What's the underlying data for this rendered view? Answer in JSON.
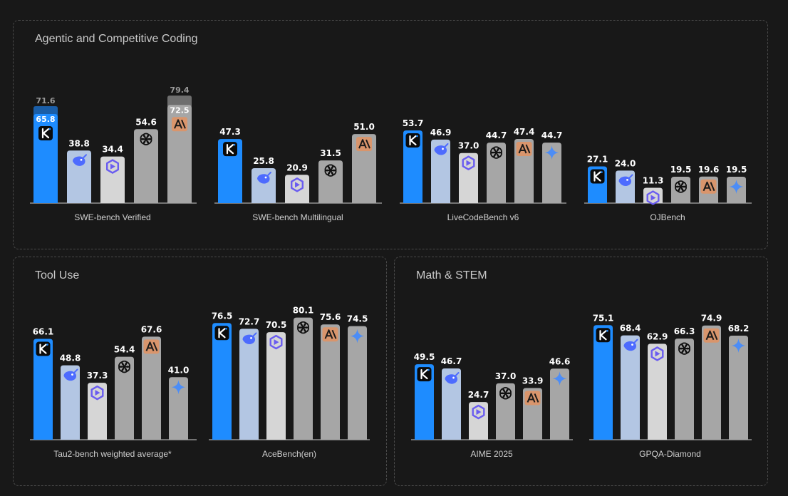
{
  "colors": {
    "kimi": "#1e8cff",
    "deepseek": "#b3c6e3",
    "qwen": "#d6d6d6",
    "openai": "#a6a6a6",
    "anthropic": "#a6a6a6",
    "gemini": "#a6a6a6",
    "axis": "#d0d0d0",
    "anthropic_icon_bg": "#d9956c",
    "kimi_extra": "#1a5ea8",
    "anthropic_extra": "#6e6e6e"
  },
  "panels": [
    {
      "id": "coding",
      "title": "Agentic and Competitive Coding"
    },
    {
      "id": "tool",
      "title": "Tool Use"
    },
    {
      "id": "math",
      "title": "Math & STEM"
    }
  ],
  "chart_data": [
    {
      "type": "bar",
      "title": "SWE-bench Verified",
      "panel": "coding",
      "models": [
        "kimi",
        "deepseek",
        "qwen",
        "openai",
        "anthropic"
      ],
      "icons": [
        "kimi-icon",
        "deepseek-icon",
        "qwen-icon",
        "openai-icon",
        "anthropic-icon"
      ],
      "values": [
        65.8,
        38.8,
        34.4,
        54.6,
        72.5
      ],
      "extended": [
        71.6,
        null,
        null,
        null,
        79.4
      ],
      "ylim": [
        0,
        82
      ]
    },
    {
      "type": "bar",
      "title": "SWE-bench Multilingual",
      "panel": "coding",
      "models": [
        "kimi",
        "deepseek",
        "qwen",
        "openai",
        "anthropic"
      ],
      "icons": [
        "kimi-icon",
        "deepseek-icon",
        "qwen-icon",
        "openai-icon",
        "anthropic-icon"
      ],
      "values": [
        47.3,
        25.8,
        20.9,
        31.5,
        51.0
      ],
      "ylim": [
        0,
        82
      ]
    },
    {
      "type": "bar",
      "title": "LiveCodeBench v6",
      "panel": "coding",
      "models": [
        "kimi",
        "deepseek",
        "qwen",
        "openai",
        "anthropic",
        "gemini"
      ],
      "icons": [
        "kimi-icon",
        "deepseek-icon",
        "qwen-icon",
        "openai-icon",
        "anthropic-icon",
        "gemini-icon"
      ],
      "values": [
        53.7,
        46.9,
        37.0,
        44.7,
        47.4,
        44.7
      ],
      "ylim": [
        0,
        82
      ]
    },
    {
      "type": "bar",
      "title": "OJBench",
      "panel": "coding",
      "models": [
        "kimi",
        "deepseek",
        "qwen",
        "openai",
        "anthropic",
        "gemini"
      ],
      "icons": [
        "kimi-icon",
        "deepseek-icon",
        "qwen-icon",
        "openai-icon",
        "anthropic-icon",
        "gemini-icon"
      ],
      "values": [
        27.1,
        24.0,
        11.3,
        19.5,
        19.6,
        19.5
      ],
      "ylim": [
        0,
        82
      ]
    },
    {
      "type": "bar",
      "title": "Tau2-bench weighted average*",
      "panel": "tool",
      "models": [
        "kimi",
        "deepseek",
        "qwen",
        "openai",
        "anthropic",
        "gemini"
      ],
      "icons": [
        "kimi-icon",
        "deepseek-icon",
        "qwen-icon",
        "openai-icon",
        "anthropic-icon",
        "gemini-icon"
      ],
      "values": [
        66.1,
        48.8,
        37.3,
        54.4,
        67.6,
        41.0
      ],
      "ylim": [
        0,
        82
      ]
    },
    {
      "type": "bar",
      "title": "AceBench(en)",
      "panel": "tool",
      "models": [
        "kimi",
        "deepseek",
        "qwen",
        "openai",
        "anthropic",
        "gemini"
      ],
      "icons": [
        "kimi-icon",
        "deepseek-icon",
        "qwen-icon",
        "openai-icon",
        "anthropic-icon",
        "gemini-icon"
      ],
      "values": [
        76.5,
        72.7,
        70.5,
        80.1,
        75.6,
        74.5
      ],
      "ylim": [
        0,
        82
      ]
    },
    {
      "type": "bar",
      "title": "AIME 2025",
      "panel": "math",
      "models": [
        "kimi",
        "deepseek",
        "qwen",
        "openai",
        "anthropic",
        "gemini"
      ],
      "icons": [
        "kimi-icon",
        "deepseek-icon",
        "qwen-icon",
        "openai-icon",
        "anthropic-icon",
        "gemini-icon"
      ],
      "values": [
        49.5,
        46.7,
        24.7,
        37.0,
        33.9,
        46.6
      ],
      "ylim": [
        0,
        82
      ]
    },
    {
      "type": "bar",
      "title": "GPQA-Diamond",
      "panel": "math",
      "models": [
        "kimi",
        "deepseek",
        "qwen",
        "openai",
        "anthropic",
        "gemini"
      ],
      "icons": [
        "kimi-icon",
        "deepseek-icon",
        "qwen-icon",
        "openai-icon",
        "anthropic-icon",
        "gemini-icon"
      ],
      "values": [
        75.1,
        68.4,
        62.9,
        66.3,
        74.9,
        68.2
      ],
      "ylim": [
        0,
        82
      ]
    }
  ]
}
